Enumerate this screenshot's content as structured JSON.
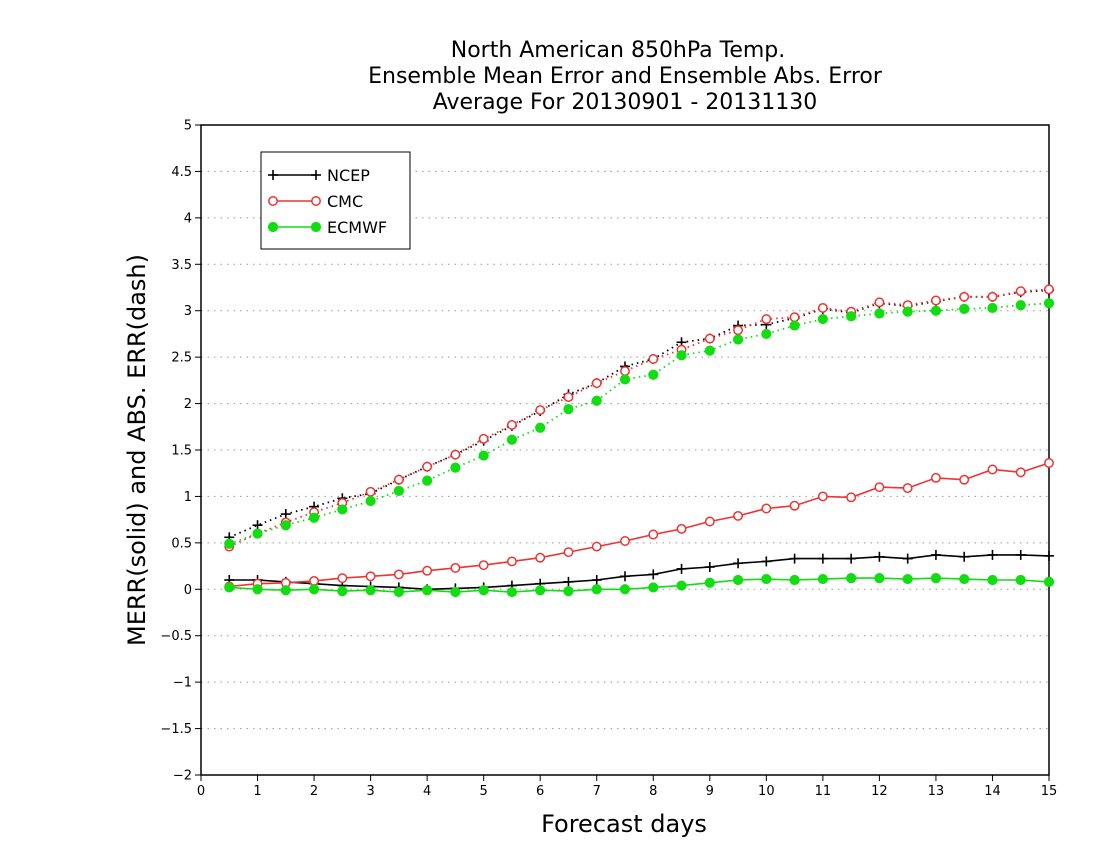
{
  "chart_data": {
    "type": "line",
    "title": [
      "North American 850hPa Temp.",
      "Ensemble Mean Error and Ensemble Abs. Error",
      "Average For 20130901 - 20131130"
    ],
    "xlabel": "Forecast days",
    "ylabel": "MERR(solid) and ABS. ERR(dash)",
    "xlim": [
      0,
      15
    ],
    "ylim": [
      -2,
      5
    ],
    "x_ticks": [
      "0",
      "1",
      "2",
      "3",
      "4",
      "5",
      "6",
      "7",
      "8",
      "9",
      "10",
      "11",
      "12",
      "13",
      "14",
      "15"
    ],
    "y_ticks": [
      "−2",
      "−1.5",
      "−1",
      "−0.5",
      "0",
      "0.5",
      "1",
      "1.5",
      "2",
      "2.5",
      "3",
      "3.5",
      "4",
      "4.5",
      "5"
    ],
    "grid": "horizontal dotted",
    "legend_position": "top-left",
    "x": [
      0.5,
      1,
      1.5,
      2,
      2.5,
      3,
      3.5,
      4,
      4.5,
      5,
      5.5,
      6,
      6.5,
      7,
      7.5,
      8,
      8.5,
      9,
      9.5,
      10,
      10.5,
      11,
      11.5,
      12,
      12.5,
      13,
      13.5,
      14,
      14.5,
      15
    ],
    "series": [
      {
        "name": "NCEP",
        "color": "#000000",
        "marker": "plus",
        "merr": [
          0.1,
          0.1,
          0.08,
          0.06,
          0.04,
          0.03,
          0.02,
          0.0,
          0.01,
          0.02,
          0.04,
          0.06,
          0.08,
          0.1,
          0.14,
          0.16,
          0.22,
          0.24,
          0.28,
          0.3,
          0.33,
          0.33,
          0.33,
          0.35,
          0.33,
          0.37,
          0.35,
          0.37,
          0.37,
          0.36
        ],
        "abs_err": [
          0.56,
          0.69,
          0.81,
          0.89,
          0.98,
          1.03,
          1.18,
          1.32,
          1.45,
          1.6,
          1.76,
          1.92,
          2.1,
          2.22,
          2.4,
          2.48,
          2.66,
          2.7,
          2.84,
          2.85,
          2.92,
          3.02,
          2.98,
          3.08,
          3.05,
          3.1,
          3.15,
          3.15,
          3.2,
          3.22
        ]
      },
      {
        "name": "CMC",
        "color": "#ee3333",
        "marker": "open-circle",
        "merr": [
          0.03,
          0.06,
          0.07,
          0.09,
          0.12,
          0.14,
          0.16,
          0.2,
          0.23,
          0.26,
          0.3,
          0.34,
          0.4,
          0.46,
          0.52,
          0.59,
          0.65,
          0.73,
          0.79,
          0.87,
          0.9,
          1.0,
          0.99,
          1.1,
          1.09,
          1.2,
          1.18,
          1.29,
          1.26,
          1.36
        ],
        "abs_err": [
          0.46,
          0.6,
          0.72,
          0.83,
          0.93,
          1.05,
          1.18,
          1.32,
          1.45,
          1.62,
          1.77,
          1.93,
          2.07,
          2.22,
          2.35,
          2.48,
          2.58,
          2.7,
          2.79,
          2.91,
          2.93,
          3.03,
          2.99,
          3.09,
          3.06,
          3.11,
          3.15,
          3.15,
          3.21,
          3.23
        ]
      },
      {
        "name": "ECMWF",
        "color": "#11dd11",
        "marker": "filled-circle",
        "merr": [
          0.02,
          0.0,
          -0.01,
          0.0,
          -0.02,
          -0.01,
          -0.03,
          -0.01,
          -0.03,
          -0.01,
          -0.03,
          -0.01,
          -0.02,
          0.0,
          0.0,
          0.02,
          0.04,
          0.07,
          0.1,
          0.11,
          0.1,
          0.11,
          0.12,
          0.12,
          0.11,
          0.12,
          0.11,
          0.1,
          0.1,
          0.08
        ],
        "abs_err": [
          0.49,
          0.6,
          0.69,
          0.77,
          0.86,
          0.95,
          1.06,
          1.17,
          1.31,
          1.44,
          1.61,
          1.74,
          1.94,
          2.03,
          2.26,
          2.31,
          2.52,
          2.57,
          2.69,
          2.75,
          2.84,
          2.91,
          2.94,
          2.97,
          2.99,
          3.0,
          3.02,
          3.03,
          3.06,
          3.08
        ]
      }
    ]
  }
}
